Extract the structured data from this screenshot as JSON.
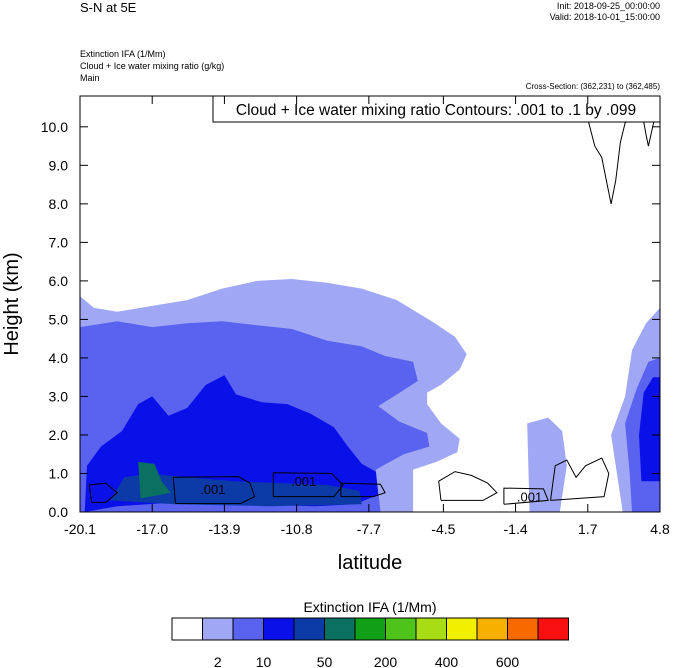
{
  "header": {
    "title": "S-N at 5E",
    "init": "Init: 2018-09-25_00:00:00",
    "valid": "Valid: 2018-10-01_15:00:00",
    "field_lines": [
      "Extinction IFA   (1/Mm)",
      "Cloud + Ice water mixing ratio   (g/kg)",
      "Main"
    ],
    "cross_section": "Cross-Section: (362,231) to (362,485)",
    "contour_info": "Cloud + Ice water mixing ratio Contours: .001 to .1 by .099"
  },
  "chart_data": {
    "type": "heatmap",
    "xlabel": "latitude",
    "ylabel": "Height (km)",
    "xlim": [
      -20.1,
      4.8
    ],
    "ylim": [
      0,
      10.8
    ],
    "x_ticks": [
      -20.1,
      -17.0,
      -13.9,
      -10.8,
      -7.7,
      -4.5,
      -1.4,
      1.7,
      4.8
    ],
    "x_tick_labels": [
      "-20.1",
      "-17.0",
      "-13.9",
      "-10.8",
      "-7.7",
      "-4.5",
      "-1.4",
      "1.7",
      "4.8"
    ],
    "y_ticks": [
      0,
      1,
      2,
      3,
      4,
      5,
      6,
      7,
      8,
      9,
      10
    ],
    "y_tick_labels": [
      "0.0",
      "1.0",
      "2.0",
      "3.0",
      "4.0",
      "5.0",
      "6.0",
      "7.0",
      "8.0",
      "9.0",
      "10.0"
    ],
    "colorbar": {
      "title": "Extinction IFA  (1/Mm)",
      "colors": [
        "#ffffff",
        "#a0a8f5",
        "#5a62f0",
        "#0a10e8",
        "#0c3aa6",
        "#0a7060",
        "#10a018",
        "#4ec41a",
        "#a8dc14",
        "#f0f000",
        "#f8b000",
        "#f86a00",
        "#f81010"
      ],
      "labels": [
        "2",
        "10",
        "50",
        "200",
        "400",
        "600"
      ]
    },
    "regions": [
      {
        "level": 1,
        "points": [
          [
            -20.1,
            0
          ],
          [
            -20.1,
            5.6
          ],
          [
            -19.5,
            5.3
          ],
          [
            -18.5,
            5.2
          ],
          [
            -17,
            5.35
          ],
          [
            -15.5,
            5.5
          ],
          [
            -14,
            5.8
          ],
          [
            -12.5,
            6.0
          ],
          [
            -11,
            6.05
          ],
          [
            -9.5,
            5.95
          ],
          [
            -8,
            5.8
          ],
          [
            -6.5,
            5.5
          ],
          [
            -5,
            4.95
          ],
          [
            -4,
            4.55
          ],
          [
            -3.5,
            4.1
          ],
          [
            -3.8,
            3.7
          ],
          [
            -4.6,
            3.3
          ],
          [
            -5.2,
            3.1
          ],
          [
            -5.2,
            2.8
          ],
          [
            -4.6,
            2.3
          ],
          [
            -3.8,
            1.9
          ],
          [
            -3.9,
            1.55
          ],
          [
            -4.8,
            1.3
          ],
          [
            -5.8,
            1.1
          ],
          [
            -5.8,
            0
          ],
          [
            -20.1,
            0
          ]
        ]
      },
      {
        "level": 1,
        "points": [
          [
            -0.8,
            0
          ],
          [
            -0.9,
            2.3
          ],
          [
            0,
            2.45
          ],
          [
            0.6,
            2.1
          ],
          [
            0.8,
            1.2
          ],
          [
            0.5,
            0
          ]
        ]
      },
      {
        "level": 1,
        "points": [
          [
            3.2,
            0
          ],
          [
            3.0,
            0.8
          ],
          [
            2.7,
            2.0
          ],
          [
            3.3,
            3.0
          ],
          [
            3.6,
            4.2
          ],
          [
            4.2,
            4.9
          ],
          [
            4.8,
            5.3
          ],
          [
            4.8,
            0
          ]
        ]
      },
      {
        "level": 2,
        "points": [
          [
            -20.1,
            0
          ],
          [
            -20.1,
            4.8
          ],
          [
            -18.5,
            4.95
          ],
          [
            -17,
            4.8
          ],
          [
            -15.5,
            4.9
          ],
          [
            -14,
            4.95
          ],
          [
            -12.5,
            4.85
          ],
          [
            -11,
            4.75
          ],
          [
            -9.5,
            4.45
          ],
          [
            -8,
            4.3
          ],
          [
            -7,
            4.05
          ],
          [
            -5.8,
            3.9
          ],
          [
            -5.6,
            3.4
          ],
          [
            -6.5,
            3.05
          ],
          [
            -7.3,
            2.75
          ],
          [
            -6.4,
            2.35
          ],
          [
            -5.2,
            2.05
          ],
          [
            -5.1,
            1.7
          ],
          [
            -6.2,
            1.5
          ],
          [
            -7.4,
            1.1
          ],
          [
            -7.2,
            0
          ],
          [
            -20.1,
            0
          ]
        ]
      },
      {
        "level": 2,
        "points": [
          [
            3.6,
            0
          ],
          [
            3.5,
            1.0
          ],
          [
            3.3,
            2.3
          ],
          [
            3.8,
            3.2
          ],
          [
            4.3,
            3.9
          ],
          [
            4.8,
            4.0
          ],
          [
            4.8,
            0
          ]
        ]
      },
      {
        "level": 3,
        "points": [
          [
            -19.9,
            0
          ],
          [
            -19.8,
            1.2
          ],
          [
            -19.2,
            1.7
          ],
          [
            -18.3,
            2.1
          ],
          [
            -17.6,
            2.8
          ],
          [
            -17,
            3.0
          ],
          [
            -16.3,
            2.5
          ],
          [
            -15.5,
            2.7
          ],
          [
            -14.7,
            3.3
          ],
          [
            -13.9,
            3.55
          ],
          [
            -13.4,
            3.05
          ],
          [
            -12.3,
            2.85
          ],
          [
            -11.2,
            2.8
          ],
          [
            -10.2,
            2.55
          ],
          [
            -9.2,
            2.2
          ],
          [
            -8.6,
            1.7
          ],
          [
            -8,
            1.25
          ],
          [
            -7.4,
            1.05
          ],
          [
            -7.3,
            0.45
          ],
          [
            -8.3,
            0.2
          ],
          [
            -10,
            0.15
          ],
          [
            -13,
            0.2
          ],
          [
            -16,
            0.25
          ],
          [
            -18.5,
            0.15
          ],
          [
            -19.9,
            0
          ]
        ]
      },
      {
        "level": 3,
        "points": [
          [
            4.0,
            0.8
          ],
          [
            3.9,
            2.0
          ],
          [
            4.1,
            3.1
          ],
          [
            4.5,
            3.5
          ],
          [
            4.8,
            3.5
          ],
          [
            4.8,
            0.8
          ]
        ]
      },
      {
        "level": 4,
        "points": [
          [
            -18.8,
            0.3
          ],
          [
            -18.2,
            0.9
          ],
          [
            -17.1,
            1.0
          ],
          [
            -15.5,
            0.9
          ],
          [
            -13.5,
            0.8
          ],
          [
            -11.5,
            0.75
          ],
          [
            -9.5,
            0.7
          ],
          [
            -8.1,
            0.55
          ],
          [
            -8,
            0.2
          ],
          [
            -12,
            0.15
          ],
          [
            -16,
            0.2
          ],
          [
            -18.8,
            0.3
          ]
        ]
      },
      {
        "level": 5,
        "points": [
          [
            -17.5,
            0.35
          ],
          [
            -17.6,
            1.3
          ],
          [
            -16.9,
            1.25
          ],
          [
            -16.6,
            0.8
          ],
          [
            -16.2,
            0.5
          ],
          [
            -17.5,
            0.35
          ]
        ]
      }
    ],
    "contours": [
      {
        "label": ".001",
        "label_at": [
          -14.4,
          0.6
        ],
        "points": [
          [
            -16.0,
            0.22
          ],
          [
            -16.1,
            0.9
          ],
          [
            -13.3,
            0.92
          ],
          [
            -12.8,
            0.75
          ],
          [
            -12.6,
            0.4
          ],
          [
            -13.2,
            0.22
          ],
          [
            -16.0,
            0.22
          ]
        ]
      },
      {
        "label": ".001",
        "label_at": [
          -10.5,
          0.8
        ],
        "points": [
          [
            -11.8,
            0.4
          ],
          [
            -11.8,
            1.02
          ],
          [
            -9.3,
            1.0
          ],
          [
            -8.8,
            0.7
          ],
          [
            -9.2,
            0.4
          ],
          [
            -11.8,
            0.4
          ]
        ]
      },
      {
        "label": "",
        "points": [
          [
            -8.9,
            0.4
          ],
          [
            -8.9,
            0.75
          ],
          [
            -7.2,
            0.72
          ],
          [
            -7.0,
            0.5
          ],
          [
            -7.5,
            0.4
          ],
          [
            -8.9,
            0.4
          ]
        ]
      },
      {
        "label": "",
        "points": [
          [
            -19.6,
            0.25
          ],
          [
            -19.7,
            0.7
          ],
          [
            -19.0,
            0.75
          ],
          [
            -18.5,
            0.5
          ],
          [
            -19.0,
            0.25
          ],
          [
            -19.6,
            0.25
          ]
        ]
      },
      {
        "label": "",
        "points": [
          [
            -4.6,
            0.3
          ],
          [
            -4.7,
            0.8
          ],
          [
            -4.0,
            1.05
          ],
          [
            -3.3,
            0.95
          ],
          [
            -2.6,
            0.75
          ],
          [
            -2.2,
            0.5
          ],
          [
            -2.8,
            0.3
          ],
          [
            -4.6,
            0.3
          ]
        ]
      },
      {
        "label": ".001",
        "label_at": [
          -0.8,
          0.4
        ],
        "points": [
          [
            -1.9,
            0.2
          ],
          [
            -1.9,
            0.62
          ],
          [
            -0.2,
            0.6
          ],
          [
            0.0,
            0.3
          ],
          [
            -1.9,
            0.2
          ]
        ]
      },
      {
        "label": "",
        "points": [
          [
            0.1,
            0.3
          ],
          [
            0.3,
            1.2
          ],
          [
            0.8,
            1.35
          ],
          [
            1.2,
            0.9
          ],
          [
            1.6,
            1.2
          ],
          [
            2.3,
            1.4
          ],
          [
            2.6,
            1.0
          ],
          [
            2.4,
            0.4
          ],
          [
            0.1,
            0.3
          ]
        ]
      },
      {
        "label": "",
        "points": [
          [
            1.7,
            10.2
          ],
          [
            2.0,
            9.5
          ],
          [
            2.3,
            9.2
          ],
          [
            2.5,
            8.6
          ],
          [
            2.7,
            8.0
          ],
          [
            2.9,
            8.6
          ],
          [
            3.1,
            9.6
          ],
          [
            3.3,
            10.1
          ],
          [
            3.7,
            10.3
          ]
        ]
      },
      {
        "label": "",
        "points": [
          [
            3.9,
            10.8
          ],
          [
            4.2,
            9.8
          ],
          [
            4.3,
            9.5
          ],
          [
            4.6,
            10.3
          ],
          [
            4.8,
            10.6
          ]
        ]
      }
    ]
  }
}
